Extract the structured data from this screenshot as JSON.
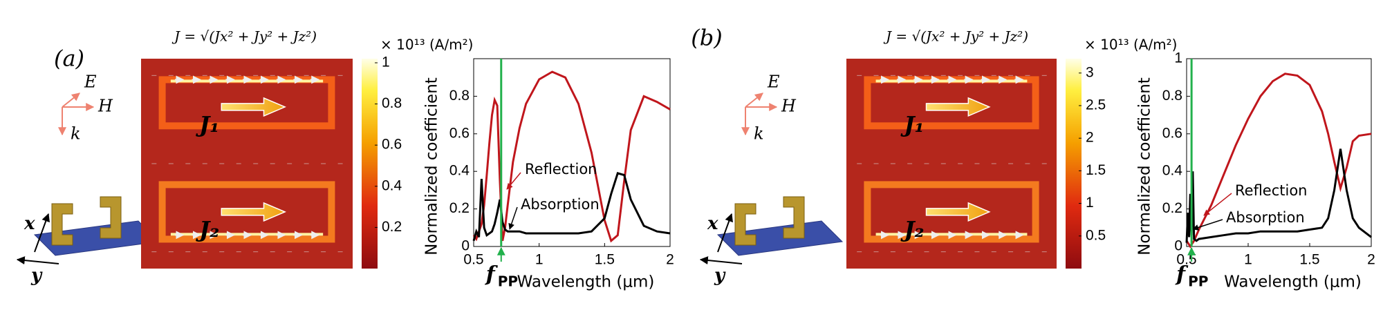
{
  "panels": [
    {
      "label": "(a)",
      "formula": "J = √(Jx² + Jy² + Jz²)",
      "colorbar": {
        "unit": "× 10¹³ (A/m²)",
        "lim": [
          0,
          1.02
        ],
        "ticks": [
          0.2,
          0.4,
          0.6,
          0.8,
          1
        ]
      },
      "currents": [
        "J₁",
        "J₂"
      ],
      "schematic": {
        "E": "E",
        "H": "H",
        "k": "k",
        "x": "x",
        "y": "y"
      }
    },
    {
      "label": "(b)",
      "formula": "J = √(Jx² + Jy² + Jz²)",
      "colorbar": {
        "unit": "× 10¹³ (A/m²)",
        "lim": [
          0,
          3.22
        ],
        "ticks": [
          0.5,
          1,
          1.5,
          2,
          2.5,
          3
        ]
      },
      "currents": [
        "J₁",
        "J₂"
      ],
      "schematic": {
        "E": "E",
        "H": "H",
        "k": "k",
        "x": "x",
        "y": "y"
      }
    }
  ],
  "chart_data": [
    {
      "type": "line",
      "x_label": "Wavelength (μm)",
      "y_label": "Normalized coefficient",
      "x": [
        0.5,
        0.52,
        0.54,
        0.56,
        0.58,
        0.6,
        0.62,
        0.64,
        0.66,
        0.68,
        0.7,
        0.72,
        0.74,
        0.76,
        0.8,
        0.85,
        0.9,
        1.0,
        1.1,
        1.2,
        1.3,
        1.4,
        1.5,
        1.55,
        1.6,
        1.65,
        1.7,
        1.8,
        1.9,
        2.0
      ],
      "series": [
        {
          "name": "Reflection",
          "color": "#c0161c",
          "values": [
            0.06,
            0.04,
            0.08,
            0.12,
            0.22,
            0.38,
            0.55,
            0.7,
            0.78,
            0.75,
            0.35,
            0.03,
            0.1,
            0.22,
            0.45,
            0.63,
            0.76,
            0.89,
            0.93,
            0.9,
            0.76,
            0.5,
            0.14,
            0.03,
            0.06,
            0.35,
            0.62,
            0.8,
            0.77,
            0.73
          ]
        },
        {
          "name": "Absorption",
          "color": "#000000",
          "values": [
            0.03,
            0.08,
            0.05,
            0.36,
            0.1,
            0.06,
            0.07,
            0.08,
            0.12,
            0.18,
            0.25,
            0.13,
            0.09,
            0.08,
            0.08,
            0.08,
            0.07,
            0.07,
            0.07,
            0.07,
            0.07,
            0.08,
            0.15,
            0.28,
            0.39,
            0.38,
            0.25,
            0.11,
            0.08,
            0.07
          ]
        }
      ],
      "marker": {
        "text": "f",
        "sub": "PP",
        "x": 0.71,
        "color": "#22b14c"
      },
      "xlim": [
        0.5,
        2
      ],
      "ylim": [
        0,
        1
      ],
      "xticks": [
        0.5,
        1,
        1.5,
        2
      ],
      "yticks": [
        0,
        0.2,
        0.4,
        0.6,
        0.8
      ]
    },
    {
      "type": "line",
      "x_label": "Wavelength (μm)",
      "y_label": "Normalized coefficient",
      "x": [
        0.5,
        0.51,
        0.52,
        0.53,
        0.54,
        0.55,
        0.56,
        0.58,
        0.6,
        0.7,
        0.8,
        0.9,
        1.0,
        1.1,
        1.2,
        1.3,
        1.4,
        1.5,
        1.6,
        1.65,
        1.7,
        1.75,
        1.8,
        1.85,
        1.9,
        2.0
      ],
      "series": [
        {
          "name": "Reflection",
          "color": "#c0161c",
          "values": [
            0.03,
            0.02,
            0.01,
            0.0,
            0.01,
            0.02,
            0.03,
            0.06,
            0.09,
            0.22,
            0.38,
            0.54,
            0.68,
            0.8,
            0.88,
            0.92,
            0.91,
            0.86,
            0.72,
            0.6,
            0.45,
            0.31,
            0.42,
            0.56,
            0.59,
            0.6
          ]
        },
        {
          "name": "Absorption",
          "color": "#000000",
          "values": [
            0.02,
            0.18,
            0.05,
            0.28,
            0.06,
            0.4,
            0.04,
            0.03,
            0.04,
            0.05,
            0.06,
            0.07,
            0.07,
            0.08,
            0.08,
            0.08,
            0.08,
            0.09,
            0.1,
            0.15,
            0.3,
            0.52,
            0.3,
            0.15,
            0.1,
            0.05
          ]
        }
      ],
      "marker": {
        "text": "f",
        "sub": "PP",
        "x": 0.54,
        "color": "#22b14c"
      },
      "xlim": [
        0.5,
        2
      ],
      "ylim": [
        0,
        1
      ],
      "xticks": [
        0.5,
        1,
        1.5,
        2
      ],
      "yticks": [
        0,
        0.2,
        0.4,
        0.6,
        0.8,
        1
      ]
    }
  ]
}
